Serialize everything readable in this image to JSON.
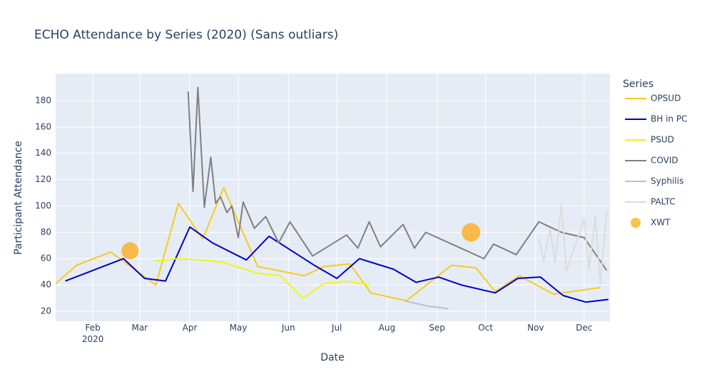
{
  "chart_data": {
    "type": "line",
    "title": "ECHO Attendance by Series (2020) (Sans outliars)",
    "x_label": "Date",
    "y_label": "Participant Attendance",
    "legend_title": "Series",
    "grid": true,
    "legend_position": "right",
    "xlim": [
      "2020-01-09",
      "2020-12-17"
    ],
    "xticks": [
      {
        "value": "2020-02-01",
        "label": "Feb\n2020"
      },
      {
        "value": "2020-03-01",
        "label": "Mar"
      },
      {
        "value": "2020-04-01",
        "label": "Apr"
      },
      {
        "value": "2020-05-01",
        "label": "May"
      },
      {
        "value": "2020-06-01",
        "label": "Jun"
      },
      {
        "value": "2020-07-01",
        "label": "Jul"
      },
      {
        "value": "2020-08-01",
        "label": "Aug"
      },
      {
        "value": "2020-09-01",
        "label": "Sep"
      },
      {
        "value": "2020-10-01",
        "label": "Oct"
      },
      {
        "value": "2020-11-01",
        "label": "Nov"
      },
      {
        "value": "2020-12-01",
        "label": "Dec"
      }
    ],
    "ylim": [
      12.4,
      200.6
    ],
    "yticks": [
      20,
      40,
      60,
      80,
      100,
      120,
      140,
      160,
      180
    ],
    "series": [
      {
        "name": "OPSUD",
        "color": "#f7cb1f",
        "mode": "lines",
        "x": [
          "2020-01-09",
          "2020-01-22",
          "2020-02-12",
          "2020-03-11",
          "2020-03-25",
          "2020-04-09",
          "2020-04-22",
          "2020-05-13",
          "2020-06-11",
          "2020-06-23",
          "2020-07-09",
          "2020-07-22",
          "2020-08-13",
          "2020-09-10",
          "2020-09-25",
          "2020-10-07",
          "2020-10-22",
          "2020-11-12",
          "2020-12-11"
        ],
        "values": [
          41,
          55,
          65,
          40,
          102,
          75,
          114,
          54,
          47,
          54,
          56,
          34,
          28,
          55,
          53,
          35,
          47,
          33,
          38
        ]
      },
      {
        "name": "BH in PC",
        "color": "#0000cd",
        "mode": "lines",
        "x": [
          "2020-01-15",
          "2020-02-20",
          "2020-03-04",
          "2020-03-17",
          "2020-04-01",
          "2020-04-15",
          "2020-05-06",
          "2020-05-20",
          "2020-06-17",
          "2020-07-01",
          "2020-07-15",
          "2020-08-05",
          "2020-08-19",
          "2020-09-02",
          "2020-09-16",
          "2020-10-07",
          "2020-10-21",
          "2020-11-04",
          "2020-11-18",
          "2020-12-02",
          "2020-12-16"
        ],
        "values": [
          43,
          60,
          45,
          43,
          84,
          72,
          59,
          77,
          55,
          45,
          60,
          52,
          42,
          46,
          40,
          34,
          45,
          46,
          32,
          27,
          29
        ]
      },
      {
        "name": "PSUD",
        "color": "#f5f50a",
        "mode": "lines",
        "x": [
          "2020-03-10",
          "2020-03-24",
          "2020-04-08",
          "2020-04-22",
          "2020-05-13",
          "2020-05-27",
          "2020-06-10",
          "2020-06-23",
          "2020-07-07",
          "2020-07-21"
        ],
        "values": [
          58,
          60,
          59,
          57,
          49,
          47,
          30,
          41,
          43,
          40
        ]
      },
      {
        "name": "COVID",
        "color": "#808080",
        "mode": "lines",
        "x": [
          "2020-03-31",
          "2020-04-03",
          "2020-04-06",
          "2020-04-10",
          "2020-04-14",
          "2020-04-17",
          "2020-04-20",
          "2020-04-24",
          "2020-04-27",
          "2020-05-01",
          "2020-05-04",
          "2020-05-11",
          "2020-05-18",
          "2020-05-26",
          "2020-06-02",
          "2020-06-16",
          "2020-07-07",
          "2020-07-14",
          "2020-07-21",
          "2020-07-28",
          "2020-08-11",
          "2020-08-18",
          "2020-08-25",
          "2020-09-30",
          "2020-10-06",
          "2020-10-20",
          "2020-11-03",
          "2020-11-17",
          "2020-12-01",
          "2020-12-15"
        ],
        "values": [
          187,
          111,
          190,
          99,
          137,
          102,
          107,
          95,
          100,
          76,
          103,
          83,
          92,
          72,
          88,
          62,
          78,
          68,
          88,
          69,
          86,
          68,
          80,
          60,
          71,
          63,
          88,
          80,
          76,
          51
        ]
      },
      {
        "name": "Syphilis",
        "color": "#c0c0c0",
        "mode": "lines",
        "x": [
          "2020-08-12",
          "2020-08-26",
          "2020-09-08"
        ],
        "values": [
          28,
          24,
          22
        ]
      },
      {
        "name": "PALTC",
        "color": "#dcdcdc",
        "mode": "lines",
        "x": [
          "2020-11-03",
          "2020-11-06",
          "2020-11-10",
          "2020-11-13",
          "2020-11-17",
          "2020-11-20",
          "2020-12-01",
          "2020-12-04",
          "2020-12-08",
          "2020-12-11",
          "2020-12-15"
        ],
        "values": [
          75,
          58,
          83,
          57,
          101,
          51,
          90,
          52,
          92,
          41,
          96
        ]
      },
      {
        "name": "XWT",
        "color": "#ffa500",
        "mode": "markers",
        "x": [
          "2020-02-24",
          "2020-09-22"
        ],
        "values": [
          66,
          80
        ]
      }
    ]
  }
}
